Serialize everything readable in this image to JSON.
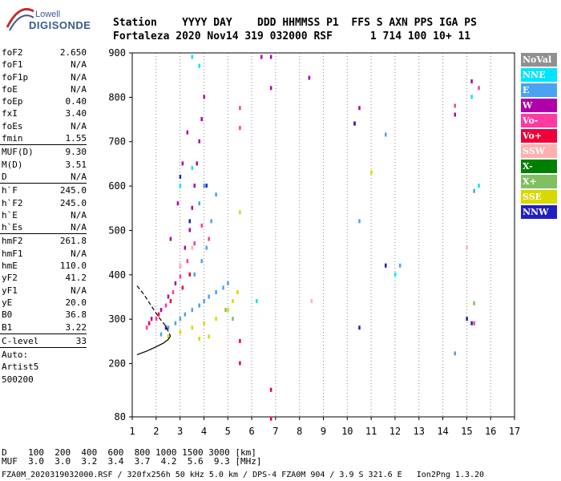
{
  "logo": {
    "line1": "Lowell",
    "line2": "DIGISONDE"
  },
  "header": {
    "labels": "Station    YYYY DAY    DDD HHMMSS P1  FFS S AXN PPS IGA PS",
    "values": "Fortaleza 2020 Nov14 319 032000 RSF      1 714 100 10+ 11"
  },
  "params": [
    {
      "key": "foF2",
      "val": "2.650"
    },
    {
      "key": "foF1",
      "val": "N/A"
    },
    {
      "key": "foF1p",
      "val": "N/A"
    },
    {
      "key": "foE",
      "val": "N/A"
    },
    {
      "key": "foEp",
      "val": "0.40"
    },
    {
      "key": "fxI",
      "val": "3.40"
    },
    {
      "key": "foEs",
      "val": "N/A"
    },
    {
      "key": "fmin",
      "val": "1.55"
    },
    {
      "sep": true
    },
    {
      "key": "MUF(D)",
      "val": "9.30"
    },
    {
      "key": "M(D)",
      "val": "3.51"
    },
    {
      "key": "D",
      "val": "N/A"
    },
    {
      "sep": true
    },
    {
      "key": "h`F",
      "val": "245.0"
    },
    {
      "key": "h`F2",
      "val": "245.0"
    },
    {
      "key": "h`E",
      "val": "N/A"
    },
    {
      "key": "h`Es",
      "val": "N/A"
    },
    {
      "sep": true
    },
    {
      "key": "hmF2",
      "val": "261.8"
    },
    {
      "key": "hmF1",
      "val": "N/A"
    },
    {
      "key": "hmE",
      "val": "110.0"
    },
    {
      "key": "yF2",
      "val": "41.2"
    },
    {
      "key": "yF1",
      "val": "N/A"
    },
    {
      "key": "yE",
      "val": "20.0"
    },
    {
      "key": "B0",
      "val": "36.8"
    },
    {
      "key": "B1",
      "val": "3.22"
    },
    {
      "sep": true
    },
    {
      "key": "C-level",
      "val": "33"
    },
    {
      "sep": true
    },
    {
      "key": "Auto:",
      "val": ""
    },
    {
      "key": "Artist5",
      "val": ""
    },
    {
      "key": "500200",
      "val": ""
    }
  ],
  "bottom": {
    "d_row": "D    100  200  400  600  800 1000 1500 3000 [km]",
    "muf_row": "MUF  3.0  3.0  3.2  3.4  3.7  4.2  5.6  9.3 [MHz]"
  },
  "footer": "FZA0M_2020319032000.RSF / 320fx256h 50 kHz 5.0 km / DPS-4 FZA0M 904 / 3.9 S 321.6 E   Ion2Png 1.3.20",
  "legend": [
    {
      "label": "NoVal",
      "color": "#909090"
    },
    {
      "label": "NNE",
      "color": "#00e5ff"
    },
    {
      "label": "E",
      "color": "#4aa3f0"
    },
    {
      "label": "W",
      "color": "#b000a8"
    },
    {
      "label": "Vo-",
      "color": "#ff3aa0"
    },
    {
      "label": "Vo+",
      "color": "#f00038"
    },
    {
      "label": "SSW",
      "color": "#ffb0b0"
    },
    {
      "label": "X-",
      "color": "#008000"
    },
    {
      "label": "X+",
      "color": "#80c060"
    },
    {
      "label": "SSE",
      "color": "#d8d800"
    },
    {
      "label": "NNW",
      "color": "#2020c0"
    }
  ],
  "chart_data": {
    "type": "scatter",
    "xlim": [
      1,
      17
    ],
    "ylim": [
      80,
      900
    ],
    "x_ticks": [
      "1",
      "2",
      "3",
      "4",
      "5",
      "6",
      "7",
      "8",
      "9",
      "10",
      "11",
      "12",
      "13",
      "14",
      "15",
      "16",
      "17"
    ],
    "y_ticks": [
      "80",
      "200",
      "300",
      "400",
      "500",
      "600",
      "700",
      "800",
      "900"
    ],
    "grid": "vertical dotted at each integer x",
    "series": [
      {
        "name": "E",
        "color": "#4aa3f0",
        "points": [
          [
            2.2,
            265
          ],
          [
            2.5,
            280
          ],
          [
            2.8,
            290
          ],
          [
            3.0,
            300
          ],
          [
            3.2,
            310
          ],
          [
            3.5,
            320
          ],
          [
            3.8,
            330
          ],
          [
            4.0,
            340
          ],
          [
            4.2,
            350
          ],
          [
            4.5,
            360
          ],
          [
            4.8,
            370
          ],
          [
            5.0,
            380
          ],
          [
            3.6,
            400
          ],
          [
            3.9,
            430
          ],
          [
            4.1,
            460
          ],
          [
            4.3,
            520
          ],
          [
            4.5,
            580
          ],
          [
            4.0,
            600
          ],
          [
            3.8,
            560
          ],
          [
            12.2,
            420
          ],
          [
            11.6,
            715
          ],
          [
            10.5,
            520
          ],
          [
            14.5,
            222
          ],
          [
            15.3,
            588
          ]
        ]
      },
      {
        "name": "W",
        "color": "#b000a8",
        "points": [
          [
            1.8,
            300
          ],
          [
            2.2,
            320
          ],
          [
            2.5,
            350
          ],
          [
            2.8,
            380
          ],
          [
            3.0,
            420
          ],
          [
            3.2,
            460
          ],
          [
            3.4,
            500
          ],
          [
            3.5,
            550
          ],
          [
            3.6,
            600
          ],
          [
            3.7,
            650
          ],
          [
            3.8,
            700
          ],
          [
            3.9,
            750
          ],
          [
            4.0,
            800
          ],
          [
            3.3,
            720
          ],
          [
            3.1,
            650
          ],
          [
            2.9,
            560
          ],
          [
            2.6,
            480
          ],
          [
            6.4,
            890
          ],
          [
            6.8,
            890
          ],
          [
            8.4,
            843
          ],
          [
            10.5,
            775
          ],
          [
            10.3,
            740
          ],
          [
            11.6,
            420
          ],
          [
            6.8,
            820
          ],
          [
            14.5,
            760
          ],
          [
            15.2,
            835
          ]
        ]
      },
      {
        "name": "Vo-",
        "color": "#ff3aa0",
        "points": [
          [
            1.6,
            280
          ],
          [
            2.0,
            300
          ],
          [
            2.4,
            330
          ],
          [
            2.7,
            360
          ],
          [
            3.0,
            395
          ],
          [
            3.3,
            430
          ],
          [
            3.6,
            470
          ],
          [
            3.9,
            510
          ],
          [
            4.2,
            480
          ],
          [
            5.5,
            730
          ],
          [
            5.5,
            775
          ],
          [
            14.5,
            780
          ],
          [
            15.5,
            820
          ],
          [
            15.3,
            290
          ]
        ]
      },
      {
        "name": "Vo+",
        "color": "#f00038",
        "points": [
          [
            1.7,
            290
          ],
          [
            2.1,
            310
          ],
          [
            2.6,
            340
          ],
          [
            3.1,
            370
          ],
          [
            3.4,
            400
          ],
          [
            5.5,
            250
          ],
          [
            5.5,
            200
          ],
          [
            6.8,
            140
          ],
          [
            6.8,
            75
          ]
        ]
      },
      {
        "name": "SSW",
        "color": "#ffb0b0",
        "points": [
          [
            3.0,
            420
          ],
          [
            3.5,
            460
          ],
          [
            8.5,
            340
          ],
          [
            15.0,
            460
          ]
        ]
      },
      {
        "name": "X+",
        "color": "#80c060",
        "points": [
          [
            5.2,
            300
          ],
          [
            4.9,
            320
          ],
          [
            15.3,
            335
          ]
        ]
      },
      {
        "name": "SSE",
        "color": "#d8d800",
        "points": [
          [
            2.5,
            260
          ],
          [
            3.0,
            270
          ],
          [
            3.5,
            280
          ],
          [
            4.0,
            290
          ],
          [
            4.5,
            300
          ],
          [
            5.0,
            320
          ],
          [
            5.2,
            340
          ],
          [
            5.4,
            360
          ],
          [
            4.2,
            260
          ],
          [
            3.8,
            255
          ],
          [
            5.5,
            540
          ],
          [
            11.0,
            630
          ]
        ]
      },
      {
        "name": "NNE",
        "color": "#00e5ff",
        "points": [
          [
            3.0,
            600
          ],
          [
            3.5,
            640
          ],
          [
            3.8,
            870
          ],
          [
            3.5,
            890
          ],
          [
            6.2,
            340
          ],
          [
            12.0,
            400
          ],
          [
            15.2,
            800
          ],
          [
            15.5,
            600
          ]
        ]
      },
      {
        "name": "NNW",
        "color": "#2020c0",
        "points": [
          [
            2.4,
            280
          ],
          [
            3.0,
            620
          ],
          [
            3.4,
            520
          ],
          [
            4.1,
            600
          ],
          [
            10.5,
            280
          ],
          [
            10.3,
            740
          ],
          [
            11.6,
            420
          ],
          [
            15.0,
            300
          ],
          [
            15.2,
            290
          ]
        ]
      }
    ],
    "curves": [
      {
        "name": "profile",
        "style": "solid",
        "points": [
          [
            1.2,
            220
          ],
          [
            1.6,
            228
          ],
          [
            2.0,
            238
          ],
          [
            2.3,
            246
          ],
          [
            2.5,
            254
          ],
          [
            2.6,
            262
          ]
        ]
      },
      {
        "name": "virtual-height",
        "style": "dashed",
        "points": [
          [
            1.2,
            375
          ],
          [
            1.5,
            355
          ],
          [
            1.8,
            330
          ],
          [
            2.1,
            305
          ],
          [
            2.4,
            285
          ],
          [
            2.6,
            262
          ]
        ]
      }
    ]
  }
}
